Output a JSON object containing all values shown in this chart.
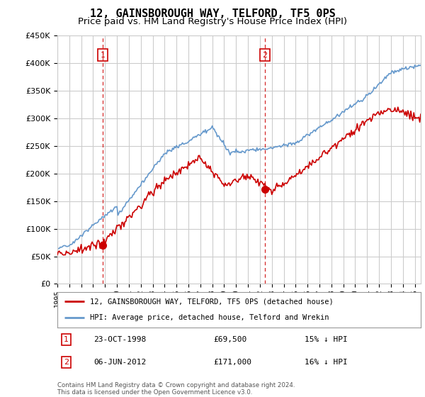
{
  "title": "12, GAINSBOROUGH WAY, TELFORD, TF5 0PS",
  "subtitle": "Price paid vs. HM Land Registry's House Price Index (HPI)",
  "legend_line1": "12, GAINSBOROUGH WAY, TELFORD, TF5 0PS (detached house)",
  "legend_line2": "HPI: Average price, detached house, Telford and Wrekin",
  "footer_line1": "Contains HM Land Registry data © Crown copyright and database right 2024.",
  "footer_line2": "This data is licensed under the Open Government Licence v3.0.",
  "sale1_date": "23-OCT-1998",
  "sale1_price": "£69,500",
  "sale1_hpi": "15% ↓ HPI",
  "sale1_year": 1998.81,
  "sale1_value": 69500,
  "sale2_date": "06-JUN-2012",
  "sale2_price": "£171,000",
  "sale2_hpi": "16% ↓ HPI",
  "sale2_year": 2012.43,
  "sale2_value": 171000,
  "ylim": [
    0,
    450000
  ],
  "yticks": [
    0,
    50000,
    100000,
    150000,
    200000,
    250000,
    300000,
    350000,
    400000,
    450000
  ],
  "xlim_start": 1995.0,
  "xlim_end": 2025.5,
  "red_color": "#cc0000",
  "blue_color": "#6699cc",
  "bg_color": "#ffffff",
  "grid_color": "#cccccc"
}
